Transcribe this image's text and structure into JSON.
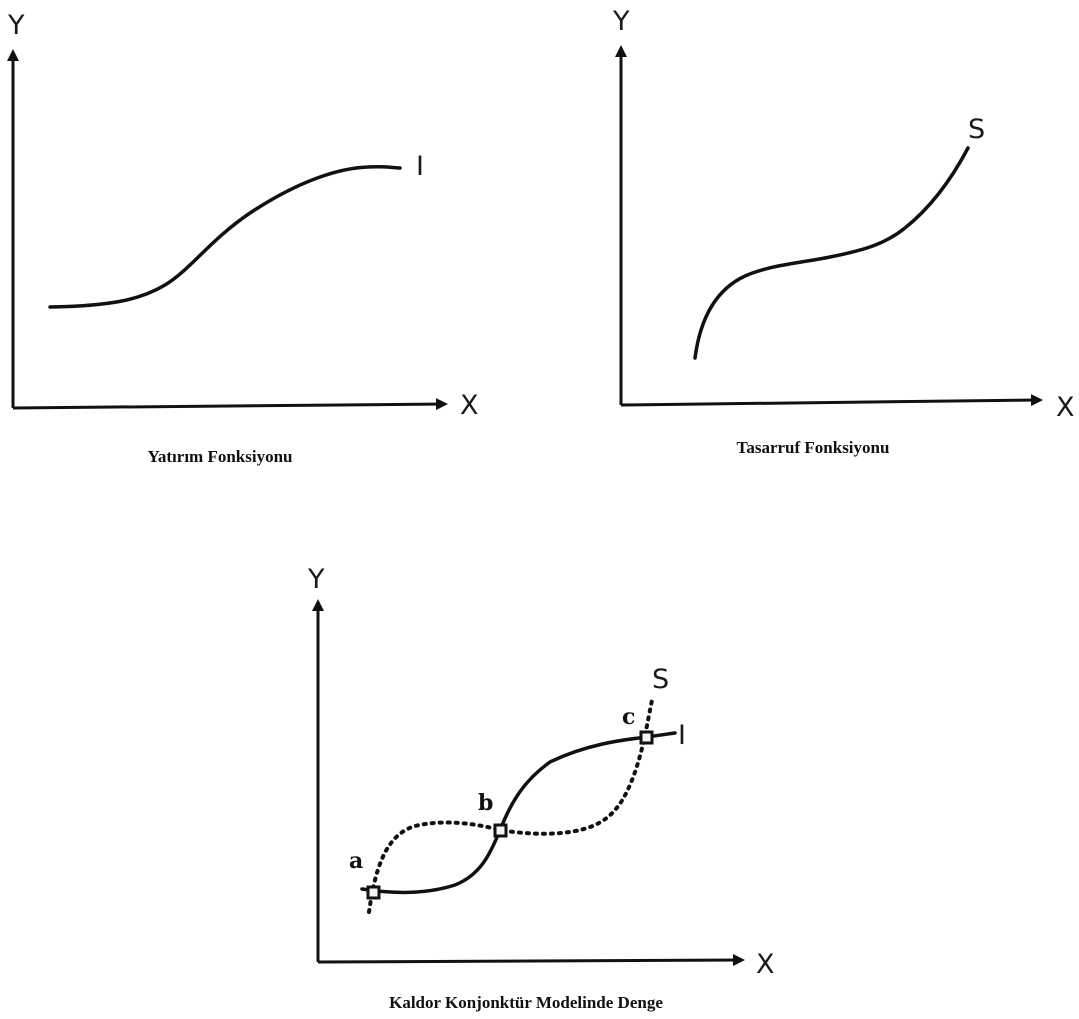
{
  "panels": [
    {
      "id": "investment",
      "caption": "Yatırım Fonksiyonu",
      "y_axis_label": "Y",
      "x_axis_label": "X",
      "curves": [
        {
          "label": "I",
          "style": "solid"
        }
      ]
    },
    {
      "id": "saving",
      "caption": "Tasarruf Fonksiyonu",
      "y_axis_label": "Y",
      "x_axis_label": "X",
      "curves": [
        {
          "label": "S",
          "style": "solid"
        }
      ]
    },
    {
      "id": "equilibrium",
      "caption": "Kaldor Konjonktür Modelinde Denge",
      "y_axis_label": "Y",
      "x_axis_label": "X",
      "curves": [
        {
          "label": "I",
          "style": "solid"
        },
        {
          "label": "S",
          "style": "dotted"
        }
      ],
      "points": [
        "a",
        "b",
        "c"
      ]
    }
  ],
  "colors": {
    "ink": "#111111",
    "background": "#ffffff"
  }
}
